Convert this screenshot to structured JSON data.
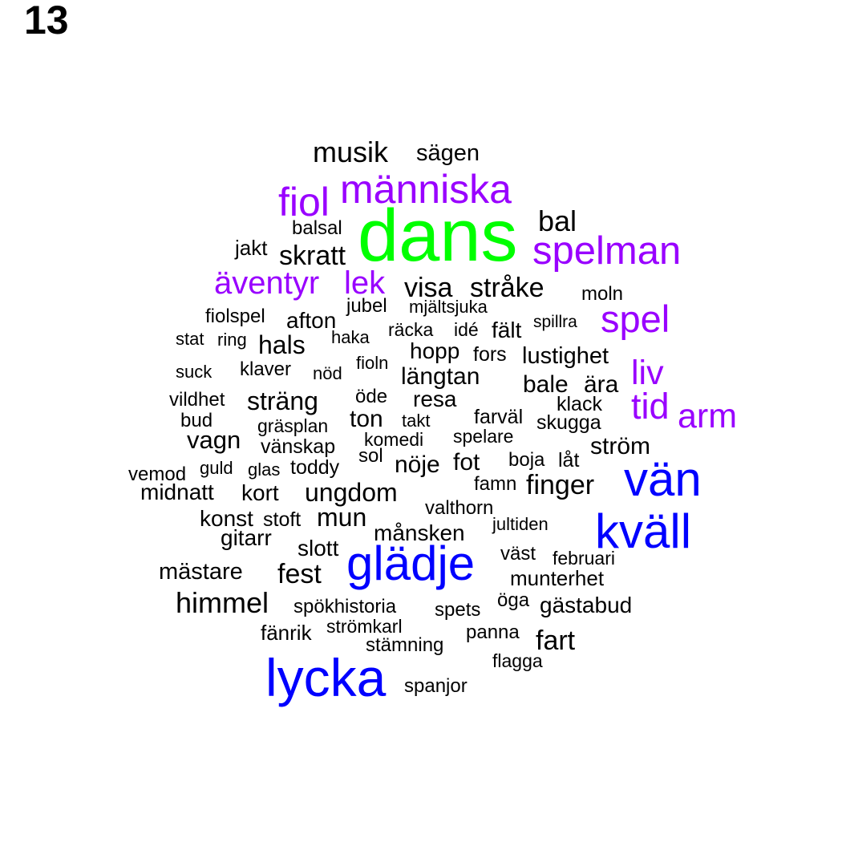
{
  "page_number": "13",
  "palette": {
    "large": "#00ff00",
    "high": "#0000ff",
    "mid": "#9900ff",
    "low": "#000000"
  },
  "words": [
    {
      "text": "musik",
      "tier": "low"
    },
    {
      "text": "sägen",
      "tier": "low"
    },
    {
      "text": "människa",
      "tier": "mid"
    },
    {
      "text": "fiol",
      "tier": "mid"
    },
    {
      "text": "balsal",
      "tier": "low"
    },
    {
      "text": "dans",
      "tier": "large"
    },
    {
      "text": "bal",
      "tier": "low"
    },
    {
      "text": "jakt",
      "tier": "low"
    },
    {
      "text": "skratt",
      "tier": "low"
    },
    {
      "text": "spelman",
      "tier": "mid"
    },
    {
      "text": "äventyr",
      "tier": "mid"
    },
    {
      "text": "lek",
      "tier": "mid"
    },
    {
      "text": "visa",
      "tier": "low"
    },
    {
      "text": "stråke",
      "tier": "low"
    },
    {
      "text": "moln",
      "tier": "low"
    },
    {
      "text": "jubel",
      "tier": "low"
    },
    {
      "text": "mjältsjuka",
      "tier": "low"
    },
    {
      "text": "fiolspel",
      "tier": "low"
    },
    {
      "text": "afton",
      "tier": "low"
    },
    {
      "text": "spel",
      "tier": "mid"
    },
    {
      "text": "spillra",
      "tier": "low"
    },
    {
      "text": "räcka",
      "tier": "low"
    },
    {
      "text": "idé",
      "tier": "low"
    },
    {
      "text": "fält",
      "tier": "low"
    },
    {
      "text": "stat",
      "tier": "low"
    },
    {
      "text": "ring",
      "tier": "low"
    },
    {
      "text": "hals",
      "tier": "low"
    },
    {
      "text": "haka",
      "tier": "low"
    },
    {
      "text": "hopp",
      "tier": "low"
    },
    {
      "text": "fors",
      "tier": "low"
    },
    {
      "text": "lustighet",
      "tier": "low"
    },
    {
      "text": "liv",
      "tier": "mid"
    },
    {
      "text": "suck",
      "tier": "low"
    },
    {
      "text": "klaver",
      "tier": "low"
    },
    {
      "text": "nöd",
      "tier": "low"
    },
    {
      "text": "fioln",
      "tier": "low"
    },
    {
      "text": "längtan",
      "tier": "low"
    },
    {
      "text": "bale",
      "tier": "low"
    },
    {
      "text": "ära",
      "tier": "low"
    },
    {
      "text": "vildhet",
      "tier": "low"
    },
    {
      "text": "sträng",
      "tier": "low"
    },
    {
      "text": "öde",
      "tier": "low"
    },
    {
      "text": "resa",
      "tier": "low"
    },
    {
      "text": "klack",
      "tier": "low"
    },
    {
      "text": "tid",
      "tier": "mid"
    },
    {
      "text": "arm",
      "tier": "mid"
    },
    {
      "text": "bud",
      "tier": "low"
    },
    {
      "text": "gräsplan",
      "tier": "low"
    },
    {
      "text": "ton",
      "tier": "low"
    },
    {
      "text": "takt",
      "tier": "low"
    },
    {
      "text": "farväl",
      "tier": "low"
    },
    {
      "text": "skugga",
      "tier": "low"
    },
    {
      "text": "vagn",
      "tier": "low"
    },
    {
      "text": "komedi",
      "tier": "low"
    },
    {
      "text": "spelare",
      "tier": "low"
    },
    {
      "text": "vänskap",
      "tier": "low"
    },
    {
      "text": "ström",
      "tier": "low"
    },
    {
      "text": "sol",
      "tier": "low"
    },
    {
      "text": "nöje",
      "tier": "low"
    },
    {
      "text": "fot",
      "tier": "low"
    },
    {
      "text": "boja",
      "tier": "low"
    },
    {
      "text": "låt",
      "tier": "low"
    },
    {
      "text": "guld",
      "tier": "low"
    },
    {
      "text": "glas",
      "tier": "low"
    },
    {
      "text": "toddy",
      "tier": "low"
    },
    {
      "text": "vemod",
      "tier": "low"
    },
    {
      "text": "vän",
      "tier": "high"
    },
    {
      "text": "famn",
      "tier": "low"
    },
    {
      "text": "finger",
      "tier": "low"
    },
    {
      "text": "midnatt",
      "tier": "low"
    },
    {
      "text": "kort",
      "tier": "low"
    },
    {
      "text": "ungdom",
      "tier": "low"
    },
    {
      "text": "valthorn",
      "tier": "low"
    },
    {
      "text": "konst",
      "tier": "low"
    },
    {
      "text": "stoft",
      "tier": "low"
    },
    {
      "text": "mun",
      "tier": "low"
    },
    {
      "text": "jultiden",
      "tier": "low"
    },
    {
      "text": "kväll",
      "tier": "high"
    },
    {
      "text": "gitarr",
      "tier": "low"
    },
    {
      "text": "månsken",
      "tier": "low"
    },
    {
      "text": "slott",
      "tier": "low"
    },
    {
      "text": "väst",
      "tier": "low"
    },
    {
      "text": "februari",
      "tier": "low"
    },
    {
      "text": "mästare",
      "tier": "low"
    },
    {
      "text": "fest",
      "tier": "low"
    },
    {
      "text": "glädje",
      "tier": "high"
    },
    {
      "text": "munterhet",
      "tier": "low"
    },
    {
      "text": "himmel",
      "tier": "low"
    },
    {
      "text": "spökhistoria",
      "tier": "low"
    },
    {
      "text": "spets",
      "tier": "low"
    },
    {
      "text": "öga",
      "tier": "low"
    },
    {
      "text": "gästabud",
      "tier": "low"
    },
    {
      "text": "fänrik",
      "tier": "low"
    },
    {
      "text": "strömkarl",
      "tier": "low"
    },
    {
      "text": "panna",
      "tier": "low"
    },
    {
      "text": "fart",
      "tier": "low"
    },
    {
      "text": "stämning",
      "tier": "low"
    },
    {
      "text": "flagga",
      "tier": "low"
    },
    {
      "text": "lycka",
      "tier": "high"
    },
    {
      "text": "spanjor",
      "tier": "low"
    }
  ]
}
